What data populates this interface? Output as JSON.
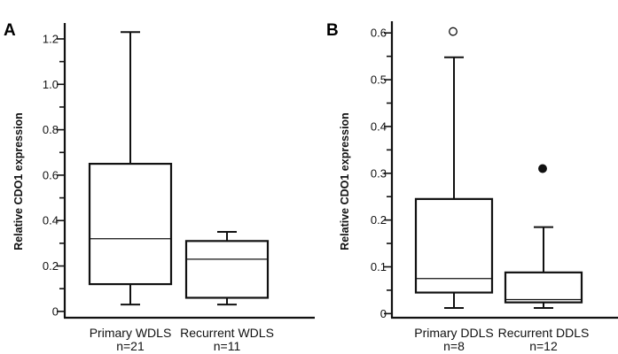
{
  "chart_data": [
    {
      "type": "box",
      "panel_label": "A",
      "ylabel": "Relative CDO1 expression",
      "yticks": [
        0,
        0.2,
        0.4,
        0.6,
        0.8,
        1.0,
        1.2
      ],
      "ytick_labels": [
        "0",
        "0.2",
        "0.4",
        "0.6",
        "0.8",
        "1.0",
        "1.2"
      ],
      "minor_step": 0.1,
      "ylim": [
        -0.02,
        1.27
      ],
      "groups": [
        {
          "name": "Primary WDLS",
          "n_label": "n=21",
          "min": 0.03,
          "q1": 0.12,
          "median": 0.32,
          "q3": 0.65,
          "max": 1.23,
          "outliers": []
        },
        {
          "name": "Recurrent WDLS",
          "n_label": "n=11",
          "min": 0.03,
          "q1": 0.06,
          "median": 0.23,
          "q3": 0.31,
          "max": 0.35,
          "outliers": []
        }
      ]
    },
    {
      "type": "box",
      "panel_label": "B",
      "ylabel": "Relative CDO1 expression",
      "yticks": [
        0,
        0.1,
        0.2,
        0.3,
        0.4,
        0.5,
        0.6
      ],
      "ytick_labels": [
        "0",
        "0.1",
        "0.2",
        "0.3",
        "0.4",
        "0.5",
        "0.6"
      ],
      "minor_step": 0.05,
      "ylim": [
        -0.005,
        0.625
      ],
      "groups": [
        {
          "name": "Primary DDLS",
          "n_label": "n=8",
          "min": 0.012,
          "q1": 0.045,
          "median": 0.075,
          "q3": 0.245,
          "max": 0.548,
          "outliers": [
            {
              "value": 0.603,
              "style": "open"
            }
          ]
        },
        {
          "name": "Recurrent DDLS",
          "n_label": "n=12",
          "min": 0.012,
          "q1": 0.024,
          "median": 0.03,
          "q3": 0.088,
          "max": 0.185,
          "outliers": [
            {
              "value": 0.31,
              "style": "filled"
            }
          ]
        }
      ]
    }
  ]
}
